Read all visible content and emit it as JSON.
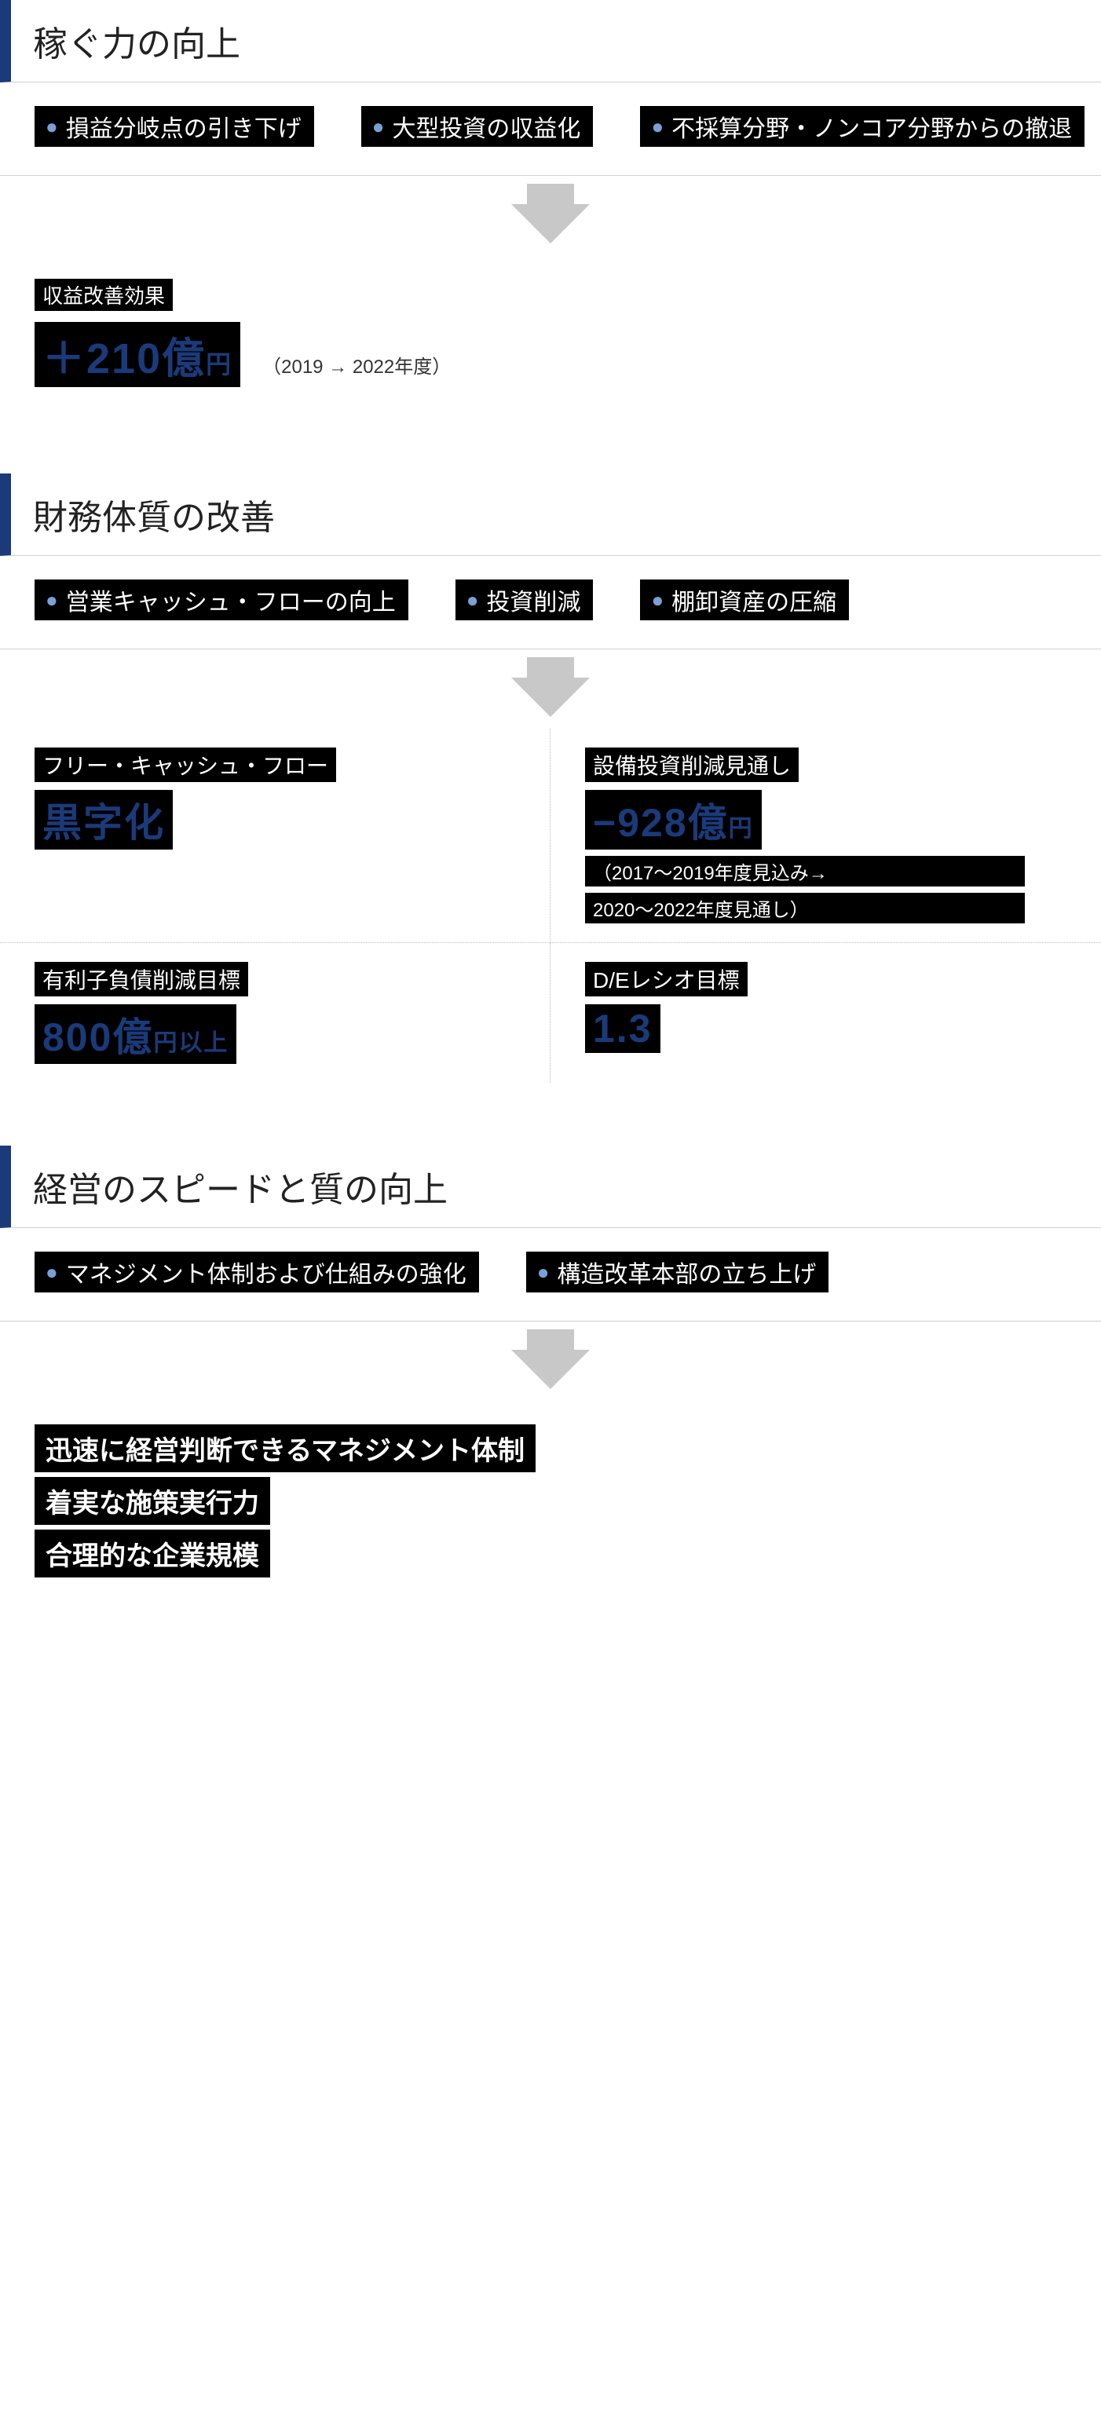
{
  "colors": {
    "accent": "#1a3a7a",
    "bullet_dot": "#7aa0d4",
    "divider": "#d0d0d0",
    "arrow": "#c8c8c8",
    "highlight_bg": "#000000",
    "highlight_fg": "#ffffff"
  },
  "s1": {
    "title": "稼ぐ力の向上",
    "bullets": [
      "損益分岐点の引き下げ",
      "大型投資の収益化",
      "不採算分野・ノンコア分野からの撤退"
    ],
    "result": {
      "label": "収益改善効果",
      "value": "＋210億",
      "unit": "円",
      "note": "（2019 → 2022年度）"
    }
  },
  "s2": {
    "title": "財務体質の改善",
    "bullets": [
      "営業キャッシュ・フローの向上",
      "投資削減",
      "棚卸資産の圧縮"
    ],
    "m1": {
      "label": "フリー・キャッシュ・フロー",
      "value": "黒字化"
    },
    "m2": {
      "label": "設備投資削減見通し",
      "value": "−928億",
      "unit": "円",
      "sub1": "（2017〜2019年度見込み→",
      "sub2": "2020〜2022年度見通し）"
    },
    "m3": {
      "label": "有利子負債削減目標",
      "value": "800億",
      "unit": "円",
      "suffix": "以上"
    },
    "m4": {
      "label": "D/Eレシオ目標",
      "value": "1.3"
    }
  },
  "s3": {
    "title": "経営のスピードと質の向上",
    "bullets": [
      "マネジメント体制および仕組みの強化",
      "構造改革本部の立ち上げ"
    ],
    "outcomes": [
      "迅速に経営判断できるマネジメント体制",
      "着実な施策実行力",
      "合理的な企業規模"
    ]
  }
}
